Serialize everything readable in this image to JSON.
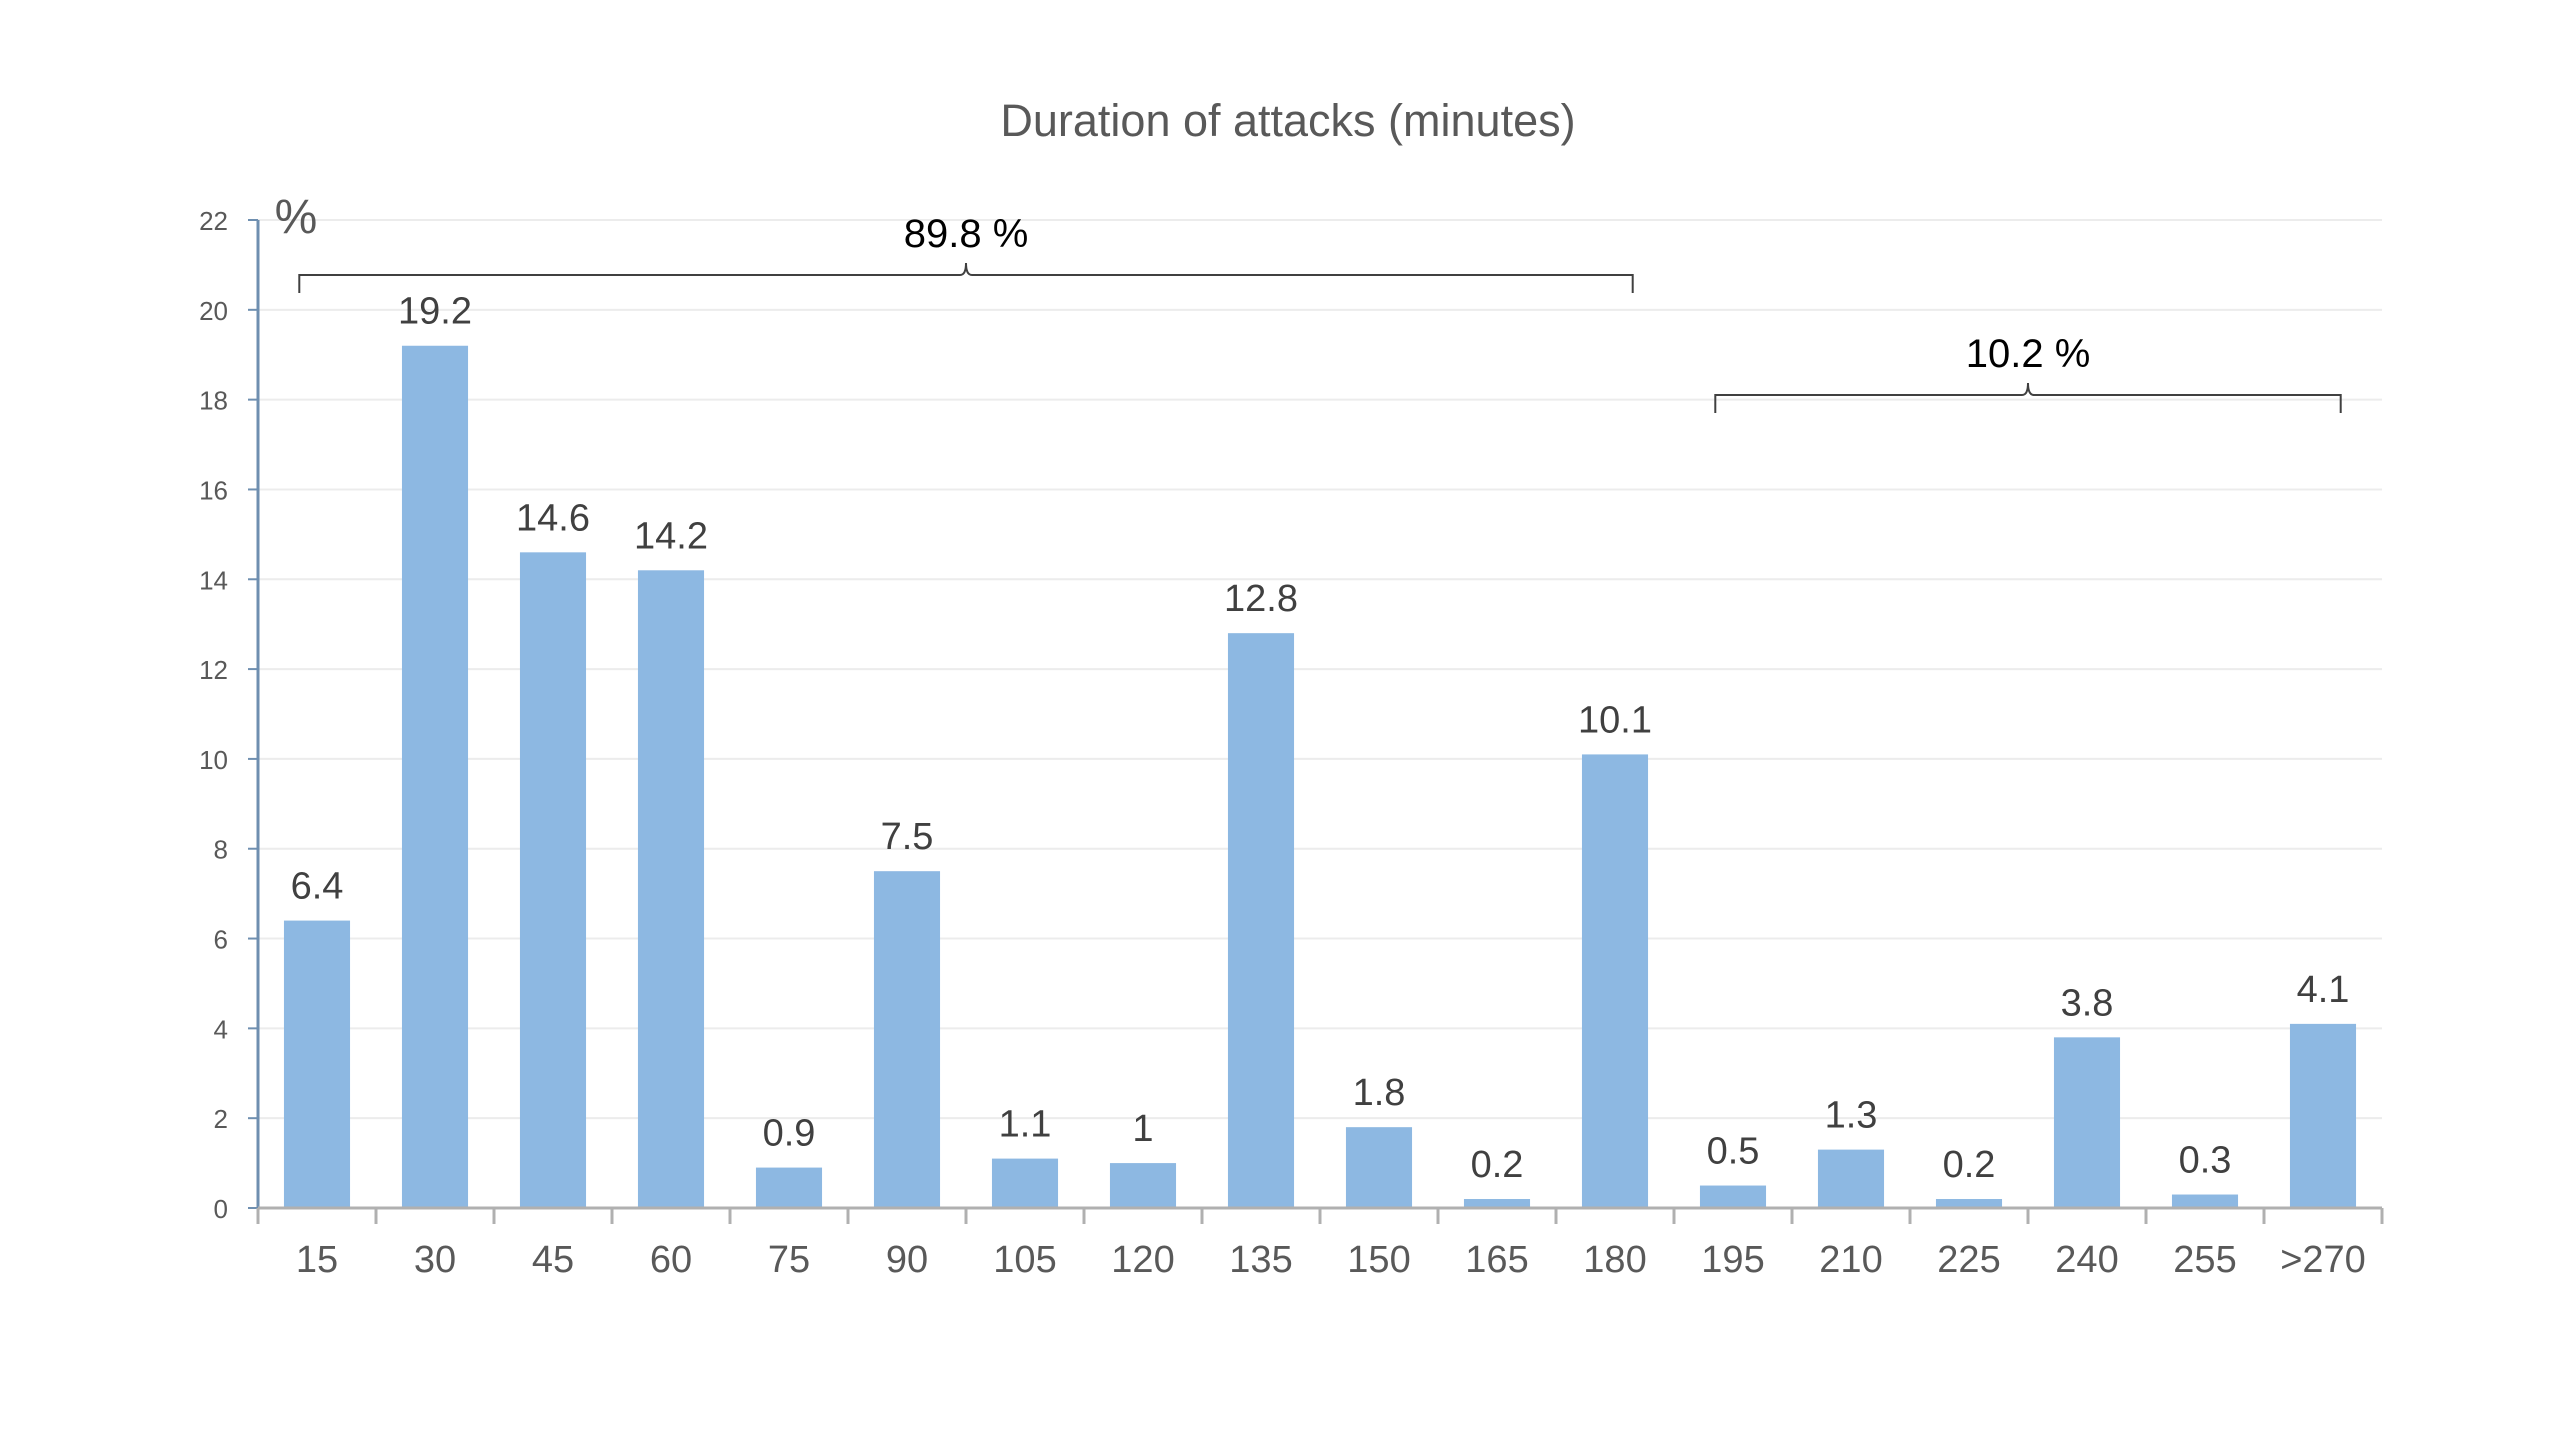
{
  "chart_data": {
    "type": "bar",
    "title": "Duration of attacks (minutes)",
    "ylabel": "%",
    "xlabel": "",
    "ylim": [
      0,
      22
    ],
    "yticks": [
      0,
      2,
      4,
      6,
      8,
      10,
      12,
      14,
      16,
      18,
      20,
      22
    ],
    "categories": [
      "15",
      "30",
      "45",
      "60",
      "75",
      "90",
      "105",
      "120",
      "135",
      "150",
      "165",
      "180",
      "195",
      "210",
      "225",
      "240",
      "255",
      ">270"
    ],
    "values": [
      6.4,
      19.2,
      14.6,
      14.2,
      0.9,
      7.5,
      1.1,
      1,
      12.8,
      1.8,
      0.2,
      10.1,
      0.5,
      1.3,
      0.2,
      3.8,
      0.3,
      4.1
    ],
    "data_labels": [
      "6.4",
      "19.2",
      "14.6",
      "14.2",
      "0.9",
      "7.5",
      "1.1",
      "1",
      "12.8",
      "1.8",
      "0.2",
      "10.1",
      "0.5",
      "1.3",
      "0.2",
      "3.8",
      "0.3",
      "4.1"
    ],
    "grid": true,
    "bar_color": "#8db8e2",
    "annotations": [
      {
        "label": "89.8 %",
        "from_category": "15",
        "to_category": "180"
      },
      {
        "label": "10.2 %",
        "from_category": "195",
        "to_category": ">270"
      }
    ]
  }
}
